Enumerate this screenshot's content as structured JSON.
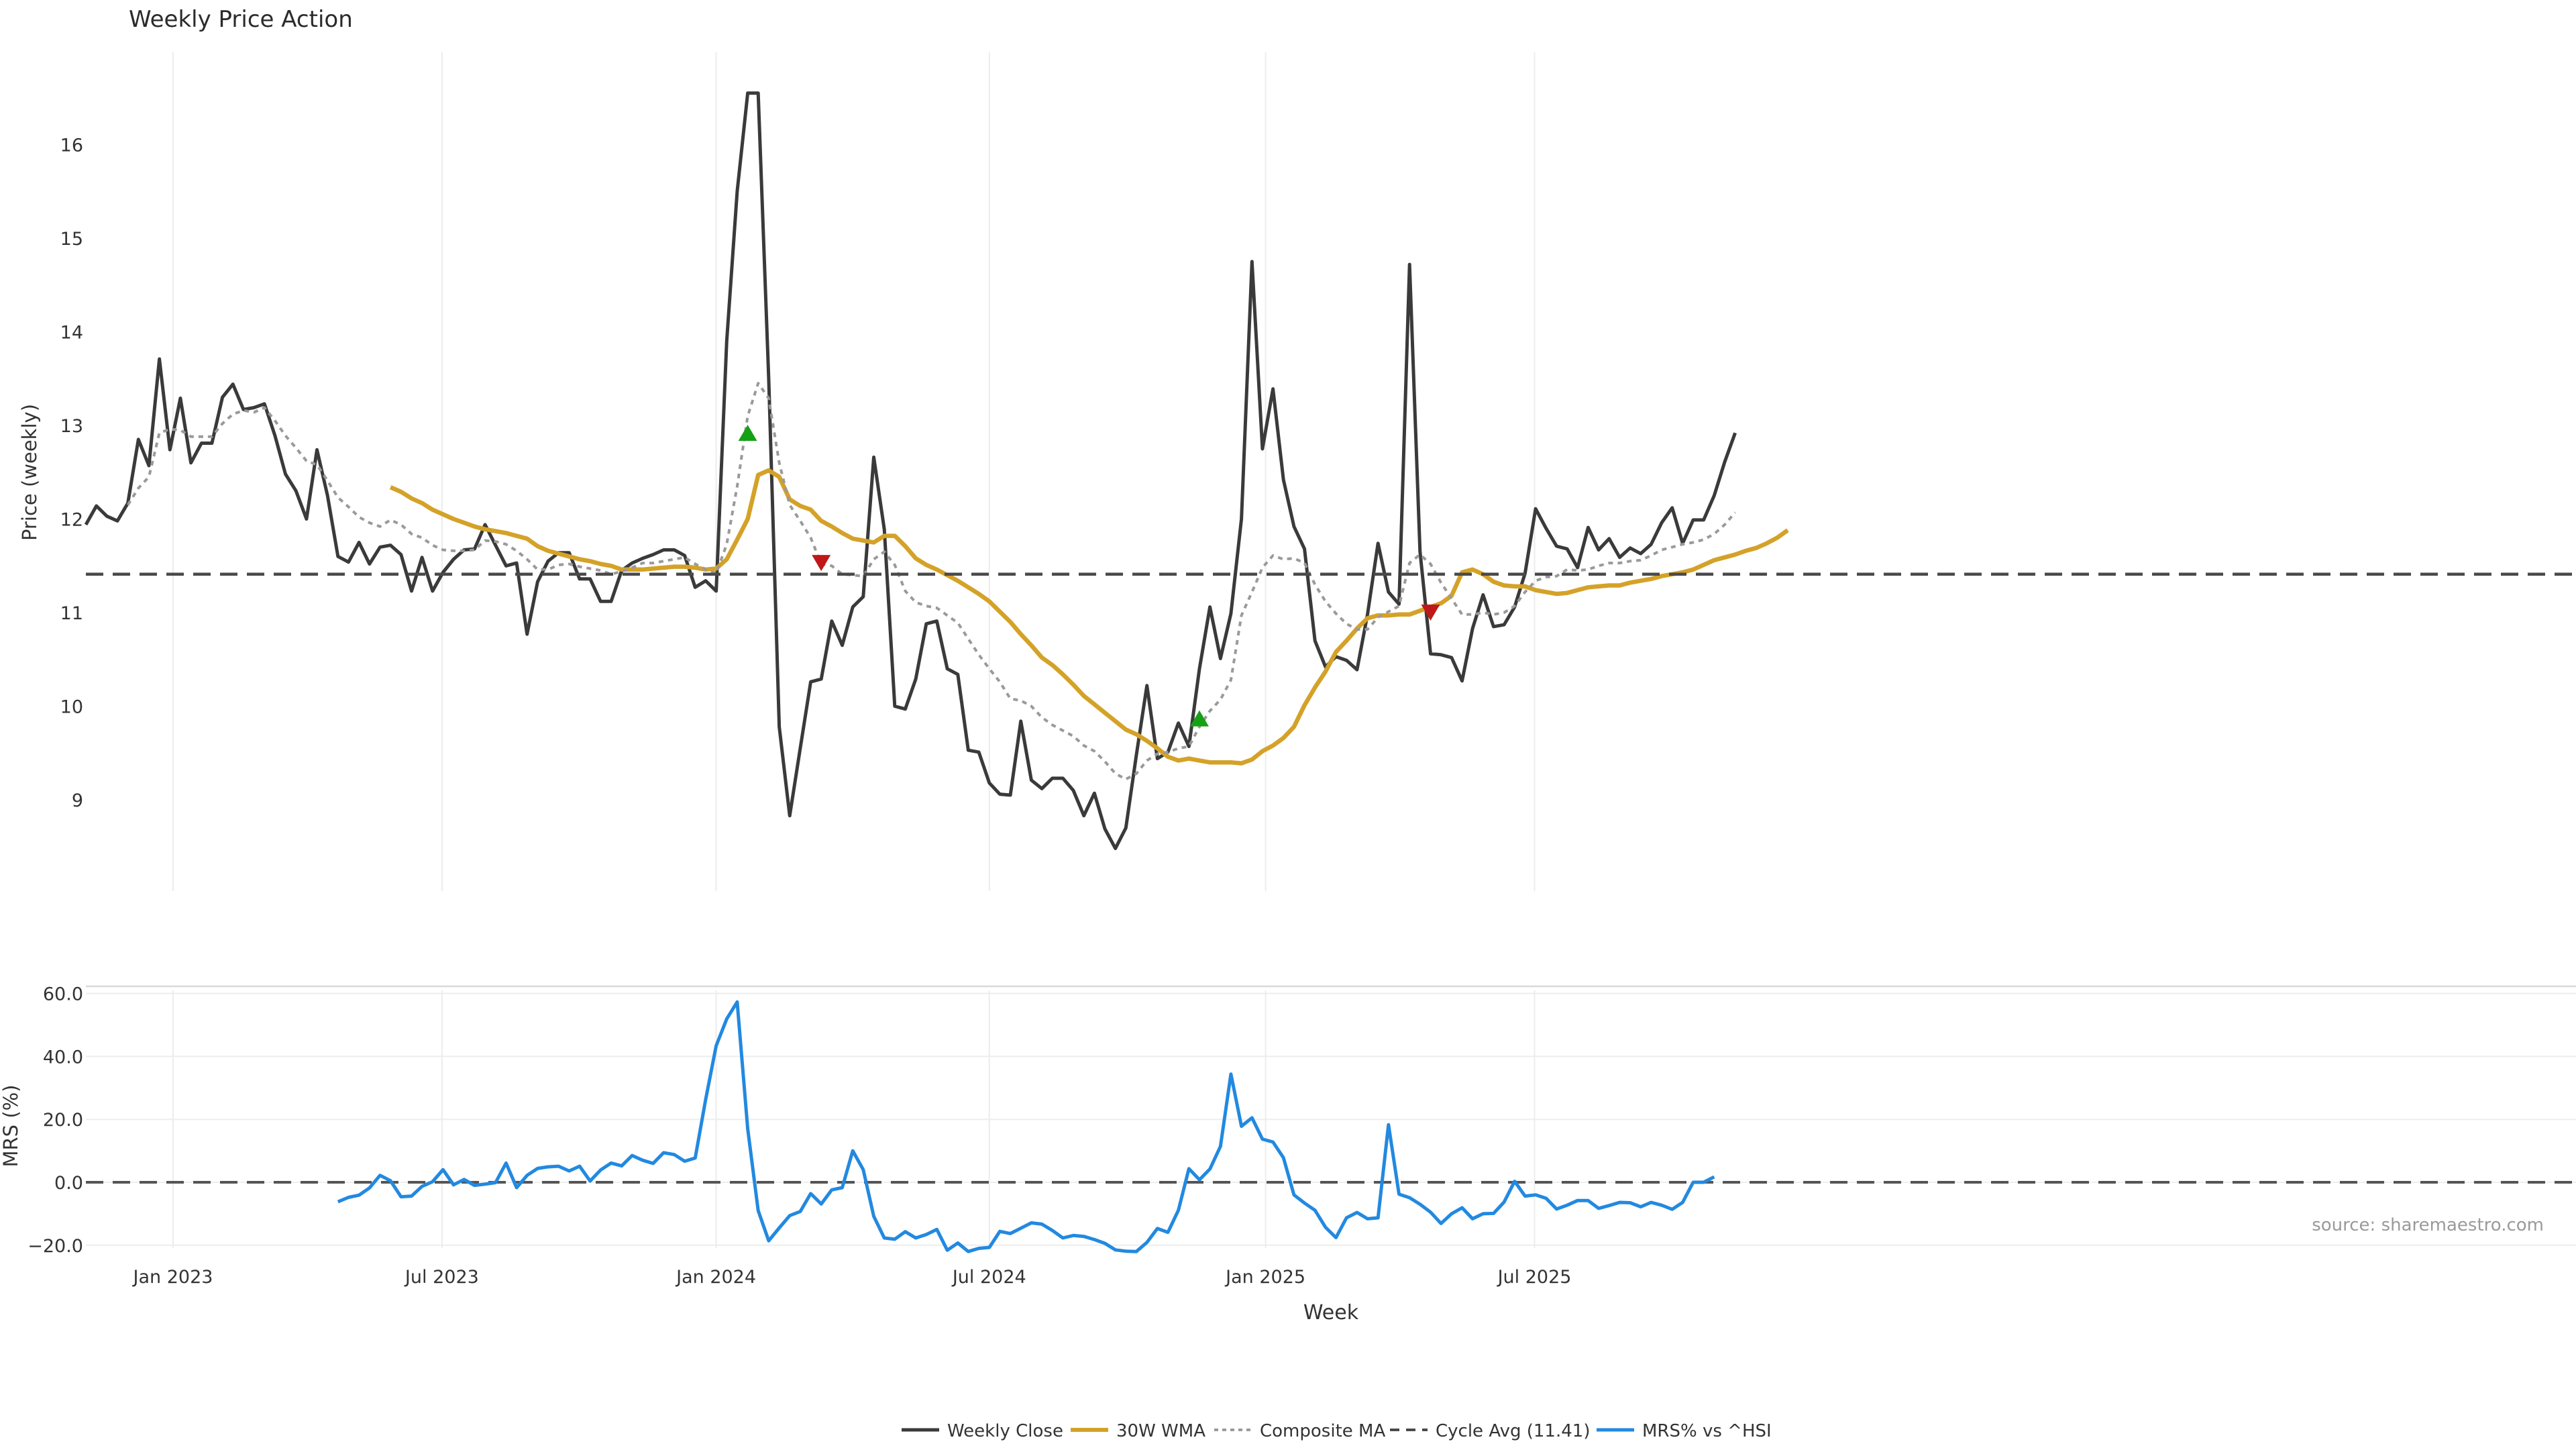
{
  "chart_data": [
    {
      "type": "line",
      "title": "Weekly Price Action",
      "ylabel": "Price (weekly)",
      "ylim": [
        8.0,
        17.0
      ],
      "yticks": [
        9,
        10,
        11,
        12,
        13,
        14,
        15,
        16
      ],
      "x_start": "2022-11-07",
      "x_step_days": 7,
      "grid": "vertical gridlines",
      "series": [
        {
          "name": "Weekly Close",
          "color": "#3a3a3a",
          "style": "solid",
          "values": [
            11.94,
            12.14,
            12.03,
            11.98,
            12.17,
            12.85,
            12.57,
            13.71,
            12.74,
            13.29,
            12.6,
            12.81,
            12.81,
            13.3,
            13.44,
            13.17,
            13.19,
            13.23,
            12.89,
            12.48,
            12.3,
            12.0,
            12.74,
            12.25,
            11.6,
            11.54,
            11.75,
            11.52,
            11.7,
            11.72,
            11.62,
            11.23,
            11.59,
            11.23,
            11.43,
            11.57,
            11.67,
            11.68,
            11.94,
            11.72,
            11.5,
            11.53,
            10.77,
            11.33,
            11.55,
            11.64,
            11.64,
            11.36,
            11.36,
            11.12,
            11.12,
            11.45,
            11.53,
            11.58,
            11.62,
            11.67,
            11.67,
            11.61,
            11.27,
            11.34,
            11.23,
            13.9,
            15.5,
            16.55,
            16.55,
            13.5,
            9.78,
            8.83,
            9.55,
            10.26,
            10.29,
            10.91,
            10.65,
            11.06,
            11.17,
            12.66,
            11.89,
            10.0,
            9.97,
            10.29,
            10.88,
            10.91,
            10.4,
            10.34,
            9.53,
            9.51,
            9.18,
            9.06,
            9.05,
            9.84,
            9.21,
            9.12,
            9.23,
            9.23,
            9.1,
            8.83,
            9.07,
            8.69,
            8.48,
            8.7,
            9.48,
            10.22,
            9.44,
            9.51,
            9.82,
            9.57,
            10.4,
            11.06,
            10.51,
            10.99,
            12.0,
            14.75,
            12.75,
            13.39,
            12.42,
            11.92,
            11.68,
            10.7,
            10.42,
            10.53,
            10.49,
            10.39,
            10.98,
            11.74,
            11.22,
            11.09,
            14.72,
            11.65,
            10.56,
            10.55,
            10.52,
            10.27,
            10.83,
            11.19,
            10.85,
            10.87,
            11.06,
            11.42,
            12.11,
            11.9,
            11.71,
            11.68,
            11.48,
            11.91,
            11.67,
            11.79,
            11.59,
            11.69,
            11.63,
            11.73,
            11.96,
            12.12,
            11.74,
            11.99,
            11.99,
            12.25,
            12.61,
            12.92
          ]
        },
        {
          "name": "30W WMA",
          "color": "#d4a228",
          "style": "solid",
          "start_index": 29,
          "values": [
            12.34,
            12.29,
            12.22,
            12.17,
            12.1,
            12.05,
            12.0,
            11.96,
            11.92,
            11.89,
            11.87,
            11.85,
            11.82,
            11.79,
            11.71,
            11.66,
            11.63,
            11.6,
            11.57,
            11.55,
            11.52,
            11.5,
            11.46,
            11.46,
            11.46,
            11.47,
            11.48,
            11.49,
            11.49,
            11.48,
            11.46,
            11.47,
            11.57,
            11.78,
            12.0,
            12.47,
            12.52,
            12.45,
            12.21,
            12.14,
            12.1,
            11.98,
            11.92,
            11.85,
            11.79,
            11.77,
            11.75,
            11.82,
            11.82,
            11.71,
            11.58,
            11.51,
            11.46,
            11.4,
            11.34,
            11.27,
            11.2,
            11.12,
            11.01,
            10.9,
            10.77,
            10.65,
            10.52,
            10.44,
            10.34,
            10.23,
            10.11,
            10.02,
            9.93,
            9.84,
            9.75,
            9.7,
            9.63,
            9.55,
            9.46,
            9.42,
            9.44,
            9.42,
            9.4,
            9.4,
            9.4,
            9.39,
            9.43,
            9.52,
            9.58,
            9.66,
            9.78,
            10.01,
            10.2,
            10.37,
            10.58,
            10.7,
            10.83,
            10.94,
            10.97,
            10.97,
            10.98,
            10.98,
            11.02,
            11.06,
            11.1,
            11.18,
            11.43,
            11.46,
            11.41,
            11.33,
            11.29,
            11.28,
            11.28,
            11.24,
            11.22,
            11.2,
            11.21,
            11.24,
            11.27,
            11.28,
            11.29,
            11.29,
            11.32,
            11.34,
            11.36,
            11.39,
            11.41,
            11.43,
            11.46,
            11.51,
            11.56,
            11.59,
            11.62,
            11.66,
            11.69,
            11.74,
            11.8,
            11.88
          ]
        },
        {
          "name": "Composite MA",
          "color": "#9a9a9a",
          "style": "dotted",
          "values": [
            null,
            null,
            null,
            null,
            12.15,
            12.33,
            12.45,
            12.92,
            12.96,
            12.95,
            12.88,
            12.88,
            12.88,
            13.02,
            13.12,
            13.16,
            13.14,
            13.19,
            13.05,
            12.89,
            12.76,
            12.62,
            12.58,
            12.41,
            12.23,
            12.13,
            12.02,
            11.96,
            11.92,
            11.99,
            11.94,
            11.84,
            11.8,
            11.72,
            11.67,
            11.66,
            11.66,
            11.67,
            11.77,
            11.76,
            11.73,
            11.66,
            11.57,
            11.46,
            11.46,
            11.51,
            11.52,
            11.49,
            11.47,
            11.45,
            11.41,
            11.44,
            11.48,
            11.53,
            11.53,
            11.55,
            11.57,
            11.59,
            11.52,
            11.46,
            11.42,
            11.73,
            12.35,
            13.1,
            13.45,
            13.29,
            12.6,
            12.15,
            11.98,
            11.8,
            11.52,
            11.5,
            11.41,
            11.4,
            11.39,
            11.57,
            11.65,
            11.51,
            11.23,
            11.11,
            11.07,
            11.05,
            10.97,
            10.89,
            10.72,
            10.55,
            10.4,
            10.26,
            10.08,
            10.06,
            10.0,
            9.88,
            9.8,
            9.74,
            9.68,
            9.58,
            9.52,
            9.41,
            9.28,
            9.22,
            9.28,
            9.42,
            9.49,
            9.51,
            9.55,
            9.57,
            9.78,
            9.95,
            10.07,
            10.28,
            10.97,
            11.22,
            11.48,
            11.61,
            11.57,
            11.58,
            11.53,
            11.3,
            11.12,
            10.99,
            10.88,
            10.82,
            10.82,
            10.95,
            11.01,
            11.07,
            11.53,
            11.62,
            11.52,
            11.32,
            11.15,
            10.98,
            10.98,
            11.0,
            10.98,
            11.0,
            11.07,
            11.22,
            11.34,
            11.38,
            11.39,
            11.46,
            11.45,
            11.46,
            11.5,
            11.53,
            11.53,
            11.55,
            11.56,
            11.61,
            11.67,
            11.7,
            11.73,
            11.75,
            11.78,
            11.84,
            11.94,
            12.07
          ]
        },
        {
          "name": "Cycle Avg (11.41)",
          "color": "#4a4a4a",
          "style": "dashed",
          "constant": 11.41
        }
      ],
      "markers": [
        {
          "kind": "buy",
          "color": "#16a016",
          "x_index": 63,
          "y": 12.92
        },
        {
          "kind": "sell",
          "color": "#c01818",
          "x_index": 70,
          "y": 11.53
        },
        {
          "kind": "buy",
          "color": "#16a016",
          "x_index": 106,
          "y": 9.87
        },
        {
          "kind": "sell",
          "color": "#c01818",
          "x_index": 128,
          "y": 11.0
        }
      ]
    },
    {
      "type": "line",
      "ylabel": "MRS (%)",
      "xlabel": "Week",
      "ylim": [
        -25.0,
        62.0
      ],
      "yticks": [
        -20,
        0,
        20,
        40,
        60
      ],
      "ytick_labels": [
        "−20.0",
        "0.0",
        "20.0",
        "40.0",
        "60.0"
      ],
      "x_start": "2022-11-07",
      "x_step_days": 7,
      "xticks": [
        {
          "label": "Jan 2023",
          "x_index": 8.3
        },
        {
          "label": "Jul 2023",
          "x_index": 33.9
        },
        {
          "label": "Jan 2024",
          "x_index": 60.0
        },
        {
          "label": "Jul 2024",
          "x_index": 86.0
        },
        {
          "label": "Jan 2025",
          "x_index": 112.3
        },
        {
          "label": "Jul 2025",
          "x_index": 137.9
        }
      ],
      "series": [
        {
          "name": "MRS% vs ^HSI",
          "color": "#2289e0",
          "style": "solid",
          "start_index": 24,
          "values": [
            -6.2,
            -4.8,
            -4.1,
            -1.8,
            2.2,
            0.5,
            -4.6,
            -4.4,
            -1.3,
            0.2,
            4.0,
            -0.8,
            0.9,
            -1.0,
            -0.6,
            -0.1,
            6.1,
            -1.7,
            2.2,
            4.4,
            4.9,
            5.1,
            3.6,
            5.1,
            0.4,
            3.9,
            6.1,
            5.2,
            8.5,
            7.0,
            6.0,
            9.4,
            8.8,
            6.7,
            7.7,
            26.3,
            43.4,
            51.9,
            57.3,
            17.0,
            -9.0,
            -18.6,
            -14.5,
            -10.6,
            -9.3,
            -3.6,
            -6.9,
            -2.4,
            -1.7,
            10.0,
            4.0,
            -10.8,
            -17.7,
            -18.1,
            -15.7,
            -17.7,
            -16.6,
            -15.0,
            -21.6,
            -19.3,
            -22.0,
            -21.0,
            -20.7,
            -15.6,
            -16.3,
            -14.6,
            -12.9,
            -13.3,
            -15.3,
            -17.7,
            -16.9,
            -17.2,
            -18.2,
            -19.4,
            -21.5,
            -21.9,
            -22.0,
            -19.1,
            -14.7,
            -15.9,
            -8.9,
            4.3,
            0.8,
            4.2,
            11.4,
            34.4,
            17.8,
            20.5,
            13.7,
            12.8,
            7.8,
            -4.0,
            -6.6,
            -8.9,
            -14.3,
            -17.6,
            -11.3,
            -9.6,
            -11.6,
            -11.3,
            18.3,
            -3.8,
            -4.9,
            -7.0,
            -9.5,
            -13.1,
            -10.0,
            -8.1,
            -11.6,
            -10.0,
            -9.9,
            -6.3,
            0.3,
            -4.4,
            -4.0,
            -5.1,
            -8.5,
            -7.3,
            -5.8,
            -5.8,
            -8.3,
            -7.4,
            -6.4,
            -6.5,
            -7.8,
            -6.4,
            -7.3,
            -8.6,
            -6.4,
            0.0,
            0.0,
            1.7
          ]
        }
      ],
      "reference_line": {
        "y": 0,
        "style": "dashed"
      },
      "annotation": "source: sharemaestro.com",
      "legend": {
        "placement": "bottom-center",
        "entries": [
          "Weekly Close",
          "30W WMA",
          "Composite MA",
          "Cycle Avg (11.41)",
          "MRS% vs ^HSI"
        ]
      }
    }
  ]
}
